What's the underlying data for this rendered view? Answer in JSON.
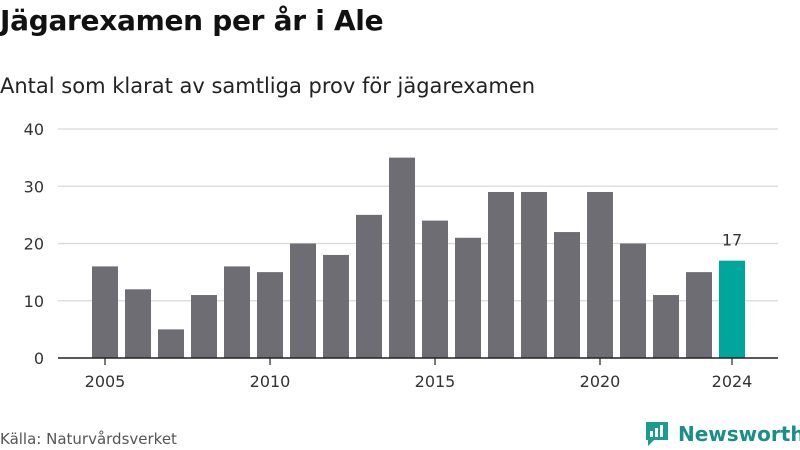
{
  "title": "Jägarexamen per år i Ale",
  "subtitle": "Antal som klarat av samtliga prov för jägarexamen",
  "source": "Källa: Naturvårdsverket",
  "brand": {
    "name": "Newsworthy",
    "icon": "newsworthy-logo-icon",
    "color": "#1a9c93"
  },
  "colors": {
    "bar": "#6e6d73",
    "highlight": "#00a69c",
    "grid": "#d9d9d9",
    "axis": "#222222"
  },
  "chart_data": {
    "type": "bar",
    "x": [
      2005,
      2006,
      2007,
      2008,
      2009,
      2010,
      2011,
      2012,
      2013,
      2014,
      2015,
      2016,
      2017,
      2018,
      2019,
      2020,
      2021,
      2022,
      2023,
      2024
    ],
    "values": [
      16,
      12,
      5,
      11,
      16,
      15,
      20,
      18,
      25,
      35,
      24,
      21,
      29,
      29,
      22,
      29,
      20,
      11,
      15,
      17
    ],
    "xticks": [
      "2005",
      "2010",
      "2015",
      "2020",
      "2024"
    ],
    "yticks": [
      "0",
      "10",
      "20",
      "30",
      "40"
    ],
    "ylim": [
      0,
      40
    ],
    "grid": true,
    "highlight": {
      "x": 2024,
      "label": "17"
    }
  }
}
